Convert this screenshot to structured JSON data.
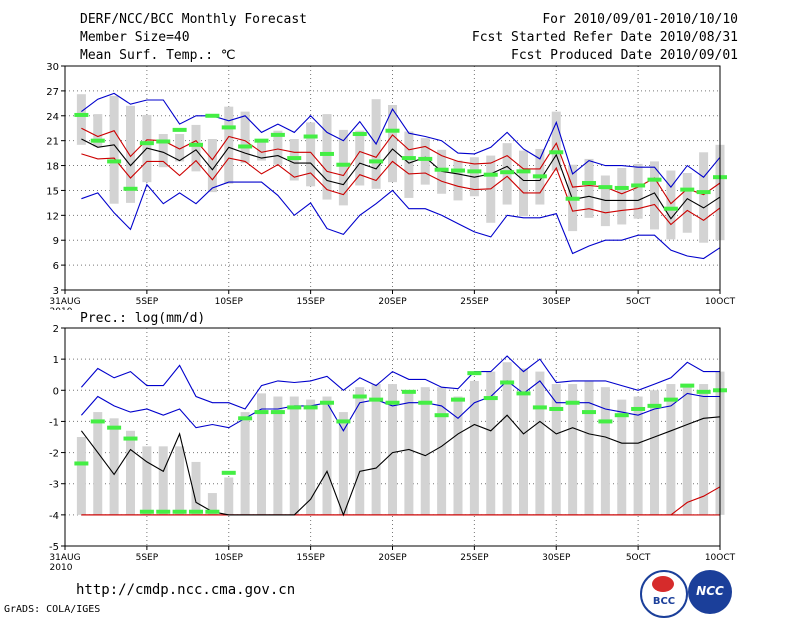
{
  "header": {
    "title": "DERF/NCC/BCC Monthly Forecast",
    "member_size": "Member Size=40",
    "variable": "Mean Surf. Temp.: ℃",
    "period": "For 2010/09/01-2010/10/10",
    "refer_date": "Fcst Started Refer Date 2010/08/31",
    "produced_date": "Fcst Produced Date 2010/09/01"
  },
  "footer": {
    "url": "http://cmdp.ncc.cma.gov.cn",
    "credit": "GrADS: COLA/IGES",
    "logo_bcc": "BCC",
    "logo_ncc": "NCC"
  },
  "colors": {
    "box": "#d3d3d3",
    "mean": "#44ee44",
    "ensemble": "#000000",
    "sd": "#cc0000",
    "range": "#0000cc"
  },
  "chart_data": [
    {
      "type": "box",
      "title": "Mean Surf. Temp.",
      "ylim": [
        3,
        30
      ],
      "yticks": [
        3,
        6,
        9,
        12,
        15,
        18,
        21,
        24,
        27,
        30
      ],
      "x_tick_index": [
        0,
        5,
        10,
        15,
        20,
        25,
        30,
        35,
        40
      ],
      "x_tick_labels": [
        "31AUG",
        "5SEP",
        "10SEP",
        "15SEP",
        "20SEP",
        "25SEP",
        "30SEP",
        "5OCT",
        "10OCT"
      ],
      "year_label": "2010",
      "days_start": 1,
      "days_end": 40,
      "max_line": [
        14,
        14.7,
        12.3,
        10.3,
        15.7,
        13.4,
        14.7,
        13.4,
        15.3,
        16,
        16,
        16,
        14.4,
        12,
        13.5,
        10.4,
        9.7,
        12,
        13.4,
        15,
        12.8,
        12.8,
        12,
        11,
        10,
        9.4,
        12,
        11.7,
        11.7,
        12.2,
        7.4,
        8.3,
        9,
        9,
        9.6,
        9.6,
        7.8,
        7.1,
        6.8,
        8.1
      ],
      "upper_line": [
        24.5,
        26,
        26.7,
        25.4,
        25.9,
        25.9,
        23,
        24,
        24,
        23.4,
        24,
        22,
        23,
        22,
        24,
        22,
        21,
        23.3,
        20.6,
        24.8,
        21.9,
        21.5,
        21,
        19.5,
        19.4,
        20.2,
        22,
        20,
        18.8,
        23.2,
        17,
        18.6,
        18,
        18,
        17.8,
        17.8,
        15.4,
        18,
        16.6,
        19
      ],
      "sd_upper": [
        22.5,
        21.5,
        22.2,
        19.1,
        21.1,
        21,
        20,
        21,
        18.7,
        21.5,
        21,
        19.6,
        20,
        19.6,
        19.6,
        17.3,
        16.8,
        19.7,
        19,
        21.7,
        19.9,
        20.3,
        19.2,
        18.5,
        18.2,
        18.3,
        19.2,
        17.6,
        17.6,
        20.7,
        15.4,
        15.6,
        15.4,
        14.6,
        15.4,
        16.5,
        13.4,
        15.2,
        14.5,
        15.9
      ],
      "ens_mean": [
        21.2,
        20.2,
        20.5,
        18,
        20.1,
        19.6,
        18.6,
        19.9,
        17.5,
        20.2,
        19.5,
        18.9,
        19.2,
        18.3,
        18.3,
        16.2,
        15.7,
        18.3,
        17.6,
        20,
        18.3,
        19,
        17.3,
        17,
        16.6,
        17,
        17.9,
        16.2,
        16.2,
        19.3,
        13.9,
        14.3,
        13.8,
        13.8,
        13.8,
        14.7,
        11.6,
        14,
        12.9,
        14.2
      ],
      "sd_lower": [
        19.4,
        18.8,
        18.9,
        16.5,
        18.5,
        18.5,
        16.8,
        18.6,
        16.3,
        18.9,
        18.5,
        17,
        18.1,
        16.6,
        17.1,
        15.1,
        14.5,
        16.9,
        16.2,
        18.5,
        17,
        17.1,
        16.1,
        15.5,
        15.1,
        15.2,
        16.7,
        14.7,
        14.7,
        17.7,
        12.5,
        12.8,
        12.3,
        12.6,
        12.8,
        13.3,
        10.9,
        12.6,
        11.4,
        12.9
      ],
      "box_high": [
        26.6,
        24.2,
        26.4,
        25.2,
        24.1,
        21.8,
        21.8,
        22.9,
        21.2,
        25.1,
        24.5,
        20.9,
        22.2,
        21.2,
        23.2,
        24.2,
        22.3,
        22.2,
        26,
        25.3,
        22.1,
        21.3,
        19.9,
        18.6,
        19,
        19.2,
        20.7,
        19.8,
        20,
        24.5,
        18.1,
        18.8,
        16.8,
        17.7,
        18.2,
        18.5,
        17.4,
        17.1,
        19.6,
        20.5
      ],
      "box_low": [
        20.5,
        20.3,
        13.4,
        13.5,
        16,
        17.8,
        18.5,
        17.3,
        14.8,
        15.8,
        18.3,
        18.6,
        18.1,
        16.2,
        15.5,
        13.9,
        13.2,
        15.6,
        15.2,
        16,
        14.1,
        15.7,
        14.6,
        13.8,
        14.3,
        11.1,
        13.3,
        11.9,
        13.3,
        17.4,
        10.1,
        11.7,
        10.7,
        10.9,
        11.6,
        10.3,
        9.1,
        9.9,
        8.7,
        9
      ],
      "box_mean": [
        24.1,
        21,
        18.5,
        15.2,
        20.7,
        20.9,
        22.3,
        20.5,
        24,
        22.6,
        20.3,
        21,
        21.7,
        18.9,
        21.5,
        19.4,
        18.1,
        21.8,
        18.5,
        22.2,
        18.9,
        18.8,
        17.5,
        17.4,
        17.3,
        16.9,
        17.2,
        17.3,
        16.7,
        19.6,
        14,
        15.9,
        15.4,
        15.3,
        15.6,
        16.3,
        12.8,
        15.1,
        14.8,
        16.6
      ]
    },
    {
      "type": "box",
      "title": "Prec.: log(mm/d)",
      "ylim": [
        -5,
        2
      ],
      "yticks": [
        -5,
        -4,
        -3,
        -2,
        -1,
        0,
        1,
        2
      ],
      "x_tick_index": [
        0,
        5,
        10,
        15,
        20,
        25,
        30,
        35,
        40
      ],
      "x_tick_labels": [
        "31AUG",
        "5SEP",
        "10SEP",
        "15SEP",
        "20SEP",
        "25SEP",
        "30SEP",
        "5OCT",
        "10OCT"
      ],
      "year_label": "2010",
      "days_start": 1,
      "days_end": 40,
      "max_line": [
        0.1,
        0.7,
        0.4,
        0.6,
        0.15,
        0.15,
        0.8,
        -0.2,
        -0.4,
        -0.4,
        -0.6,
        0.15,
        0.3,
        0.25,
        0.3,
        0.45,
        0,
        0.4,
        0.15,
        0.6,
        0.35,
        0.35,
        0.1,
        0.05,
        0.6,
        0.6,
        1.1,
        0.6,
        1,
        0.25,
        0.3,
        0.3,
        0.3,
        0.15,
        0,
        0.2,
        0.4,
        0.9,
        0.6,
        0.6
      ],
      "upper_line": [
        -0.8,
        -0.2,
        -0.5,
        -0.7,
        -0.6,
        -0.8,
        -0.6,
        -1.2,
        -1.1,
        -1.2,
        -0.9,
        -0.6,
        -0.6,
        -0.5,
        -0.5,
        -0.4,
        -1.3,
        -0.4,
        -0.3,
        -0.5,
        -0.4,
        -0.4,
        -0.5,
        -0.9,
        -0.4,
        -0.2,
        0.3,
        -0.1,
        0.3,
        -0.4,
        -0.4,
        -0.4,
        -0.6,
        -0.7,
        -0.8,
        -0.6,
        -0.5,
        -0.1,
        -0.2,
        -0.2
      ],
      "sd_upper": [
        -4,
        -4,
        -4,
        -4,
        -4,
        -4,
        -4,
        -4,
        -4,
        -4,
        -4,
        -4,
        -4,
        -4,
        -4,
        -4,
        -4,
        -4,
        -4,
        -4,
        -4,
        -4,
        -4,
        -4,
        -4,
        -4,
        -4,
        -4,
        -4,
        -4,
        -4,
        -4,
        -4,
        -4,
        -4,
        -4,
        -4,
        -4,
        -4,
        -4
      ],
      "ens_mean": [
        -1.3,
        -2,
        -2.7,
        -1.9,
        -2.3,
        -2.6,
        -1.4,
        -3.6,
        -3.9,
        -4,
        -4,
        -4,
        -4,
        -4,
        -3.5,
        -2.6,
        -4,
        -2.6,
        -2.5,
        -2,
        -1.9,
        -2.1,
        -1.8,
        -1.4,
        -1.1,
        -1.3,
        -0.8,
        -1.4,
        -1,
        -1.4,
        -1.2,
        -1.4,
        -1.5,
        -1.7,
        -1.7,
        -1.5,
        -1.3,
        -1.1,
        -0.9,
        -0.85
      ],
      "sd_lower": [
        -4,
        -4,
        -4,
        -4,
        -4,
        -4,
        -4,
        -4,
        -4,
        -4,
        -4,
        -4,
        -4,
        -4,
        -4,
        -4,
        -4,
        -4,
        -4,
        -4,
        -4,
        -4,
        -4,
        -4,
        -4,
        -4,
        -4,
        -4,
        -4,
        -4,
        -4,
        -4,
        -4,
        -4,
        -4,
        -4,
        -4,
        -3.6,
        -3.4,
        -3.1
      ],
      "box_high": [
        -1.5,
        -0.7,
        -0.9,
        -1.3,
        -1.8,
        -1.8,
        -1.8,
        -2.3,
        -3.3,
        -2.8,
        -0.7,
        -0.1,
        -0.2,
        -0.2,
        -0.3,
        -0.2,
        -0.7,
        0.1,
        0.2,
        0.2,
        -0.1,
        0.1,
        0.1,
        -0.2,
        0.3,
        0.6,
        0.9,
        0.7,
        0.6,
        0.2,
        0.2,
        0.3,
        0.1,
        -0.3,
        -0.2,
        0,
        0.2,
        0.2,
        0.2,
        0.6
      ],
      "box_low": [
        -4,
        -4,
        -4,
        -4,
        -4,
        -4,
        -4,
        -4,
        -4,
        -4,
        -4,
        -4,
        -4,
        -4,
        -4,
        -4,
        -4,
        -4,
        -4,
        -4,
        -4,
        -4,
        -4,
        -4,
        -4,
        -4,
        -4,
        -4,
        -4,
        -4,
        -4,
        -4,
        -4,
        -4,
        -4,
        -4,
        -4,
        -4,
        -4,
        -4
      ],
      "box_mean": [
        -2.35,
        -1,
        -1.2,
        -1.55,
        -3.9,
        -3.9,
        -3.9,
        -3.9,
        -3.9,
        -2.65,
        -0.9,
        -0.7,
        -0.7,
        -0.55,
        -0.55,
        -0.4,
        -1,
        -0.2,
        -0.3,
        -0.4,
        -0.05,
        -0.4,
        -0.8,
        -0.3,
        0.55,
        -0.25,
        0.25,
        -0.1,
        -0.55,
        -0.6,
        -0.4,
        -0.7,
        -1,
        -0.8,
        -0.6,
        -0.5,
        -0.3,
        0.15,
        -0.05,
        0
      ]
    }
  ]
}
